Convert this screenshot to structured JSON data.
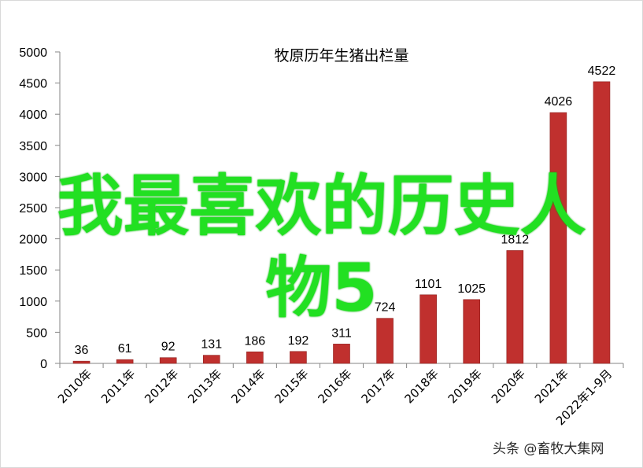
{
  "chart_data": {
    "type": "bar",
    "title": "牧原历年生猪出栏量",
    "categories": [
      "2010年",
      "2011年",
      "2012年",
      "2013年",
      "2014年",
      "2015年",
      "2016年",
      "2017年",
      "2018年",
      "2019年",
      "2020年",
      "2021年",
      "2022年1-9月"
    ],
    "values": [
      36,
      61,
      92,
      131,
      186,
      192,
      311,
      724,
      1101,
      1025,
      1812,
      4026,
      4522
    ],
    "value_labels": [
      "36",
      "61",
      "92",
      "131",
      "186",
      "192",
      "311",
      "724",
      "1101",
      "1025",
      "1812",
      "4026",
      "4522"
    ],
    "ylim": [
      0,
      5000
    ],
    "yticks": [
      "0",
      "500",
      "1000",
      "1500",
      "2000",
      "2500",
      "3000",
      "3500",
      "4000",
      "4500",
      "5000"
    ],
    "bar_color": "#c0302e",
    "grid": false,
    "legend": "none"
  },
  "overlay": {
    "line1": "我最喜欢的历史人",
    "line2": "物5",
    "color": "#22e022"
  },
  "watermark": "头条 @畜牧大集网"
}
